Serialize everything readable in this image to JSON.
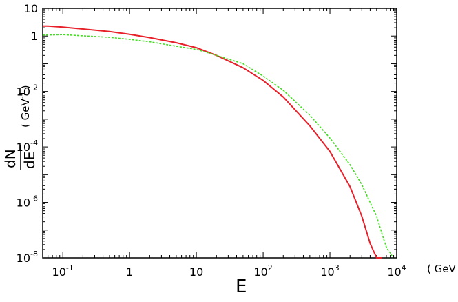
{
  "chart_data": {
    "type": "line",
    "x_scale": "log",
    "y_scale": "log",
    "xlim": [
      0.05,
      10000
    ],
    "ylim": [
      1e-08,
      10
    ],
    "xlabel": "E",
    "xunit": "( GeV )",
    "ylabel_numerator": "dN",
    "ylabel_denominator": "dE",
    "ylabel_unit_open": "( GeV",
    "ylabel_unit_exp": "-1",
    "ylabel_unit_close": ")",
    "x_ticks": [
      {
        "value": 0.1,
        "base": "10",
        "exp": "-1"
      },
      {
        "value": 1,
        "base": "1",
        "exp": ""
      },
      {
        "value": 10,
        "base": "10",
        "exp": ""
      },
      {
        "value": 100,
        "base": "10",
        "exp": "2"
      },
      {
        "value": 1000,
        "base": "10",
        "exp": "3"
      },
      {
        "value": 10000,
        "base": "10",
        "exp": "4"
      }
    ],
    "y_ticks": [
      {
        "value": 10,
        "base": "10",
        "exp": ""
      },
      {
        "value": 1,
        "base": "1",
        "exp": ""
      },
      {
        "value": 0.01,
        "base": "10",
        "exp": "-2"
      },
      {
        "value": 0.0001,
        "base": "10",
        "exp": "-4"
      },
      {
        "value": 1e-06,
        "base": "10",
        "exp": "-6"
      },
      {
        "value": 1e-08,
        "base": "10",
        "exp": "-8"
      }
    ],
    "series": [
      {
        "color": "#e8202a",
        "dash": "solid",
        "x": [
          0.05,
          0.06,
          0.1,
          0.2,
          0.5,
          1,
          2,
          5,
          10,
          20,
          50,
          100,
          200,
          500,
          1000,
          2000,
          3000,
          4000,
          5000,
          5800,
          6000
        ],
        "y": [
          2.3,
          2.3,
          2.1,
          1.8,
          1.45,
          1.15,
          0.88,
          0.57,
          0.38,
          0.2,
          0.072,
          0.025,
          0.0063,
          0.00058,
          6.9e-05,
          3.7e-06,
          3.2e-07,
          3.3e-08,
          1e-08,
          1e-08,
          1e-08
        ]
      },
      {
        "color": "#44dd22",
        "dash": "dashed",
        "x": [
          0.05,
          0.1,
          0.2,
          0.5,
          1,
          2,
          5,
          10,
          20,
          50,
          100,
          200,
          500,
          1000,
          2000,
          3000,
          4000,
          5000,
          6000,
          7000,
          8000,
          8800
        ],
        "y": [
          1.08,
          1.12,
          1.02,
          0.9,
          0.76,
          0.62,
          0.43,
          0.33,
          0.2,
          0.1,
          0.036,
          0.011,
          0.0014,
          0.00021,
          2.3e-05,
          4.4e-06,
          1e-06,
          3.2e-07,
          7.6e-08,
          2.4e-08,
          1.5e-08,
          1e-08
        ]
      }
    ]
  }
}
